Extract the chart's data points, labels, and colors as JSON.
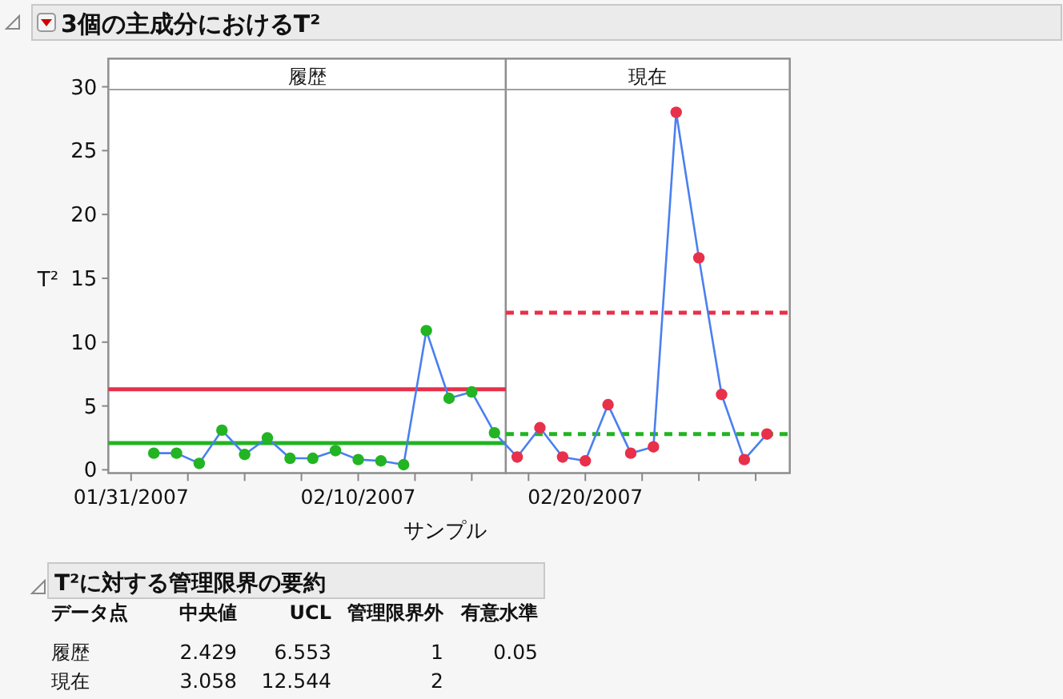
{
  "chart_data": [
    {
      "type": "line",
      "title": "3個の主成分におけるT²",
      "xlabel": "サンプル",
      "ylabel": "T²",
      "marker": "circle",
      "xlim": [
        "2007-01-30",
        "2007-03-01"
      ],
      "xticks": [
        {
          "value": "2007-01-31",
          "label": "01/31/2007"
        },
        {
          "value": "2007-02-02T12:00",
          "label": null
        },
        {
          "value": "2007-02-05",
          "label": null
        },
        {
          "value": "2007-02-07T12:00",
          "label": null
        },
        {
          "value": "2007-02-10",
          "label": "02/10/2007"
        },
        {
          "value": "2007-02-12T12:00",
          "label": null
        },
        {
          "value": "2007-02-15",
          "label": null
        },
        {
          "value": "2007-02-17T12:00",
          "label": null
        },
        {
          "value": "2007-02-20",
          "label": "02/20/2007"
        },
        {
          "value": "2007-02-22T12:00",
          "label": null
        },
        {
          "value": "2007-02-25",
          "label": null
        },
        {
          "value": "2007-02-27T12:00",
          "label": null
        }
      ],
      "ylim": [
        -0.25,
        32.2
      ],
      "yticks": [
        0,
        5,
        10,
        15,
        20,
        25,
        30
      ],
      "bands": [
        {
          "axis": "x",
          "from": "2007-01-30",
          "to": "2007-02-16T12:00",
          "label": "履歴"
        },
        {
          "axis": "x",
          "from": "2007-02-16T12:00",
          "to": "2007-03-01",
          "label": "現在"
        }
      ],
      "series": [
        {
          "type": "line",
          "color": "#4a7ff0",
          "x": [
            "2007-02-01",
            "2007-02-02",
            "2007-02-03",
            "2007-02-04",
            "2007-02-05",
            "2007-02-06",
            "2007-02-07",
            "2007-02-08",
            "2007-02-09",
            "2007-02-10",
            "2007-02-11",
            "2007-02-12",
            "2007-02-13",
            "2007-02-14",
            "2007-02-15",
            "2007-02-16",
            "2007-02-17",
            "2007-02-18",
            "2007-02-19",
            "2007-02-20",
            "2007-02-21",
            "2007-02-22",
            "2007-02-23",
            "2007-02-24",
            "2007-02-25",
            "2007-02-26",
            "2007-02-27",
            "2007-02-28"
          ],
          "values": [
            1.3,
            1.3,
            0.5,
            3.1,
            1.2,
            2.5,
            0.9,
            0.9,
            1.5,
            0.8,
            0.7,
            0.4,
            10.9,
            5.6,
            6.1,
            2.9,
            1.0,
            3.3,
            1.0,
            0.7,
            5.1,
            1.3,
            1.8,
            28.0,
            16.6,
            5.9,
            0.8,
            2.8
          ],
          "colors": [
            "#22b422",
            "#22b422",
            "#22b422",
            "#22b422",
            "#22b422",
            "#22b422",
            "#22b422",
            "#22b422",
            "#22b422",
            "#22b422",
            "#22b422",
            "#22b422",
            "#22b422",
            "#22b422",
            "#22b422",
            "#22b422",
            "#e8304a",
            "#e8304a",
            "#e8304a",
            "#e8304a",
            "#e8304a",
            "#e8304a",
            "#e8304a",
            "#e8304a",
            "#e8304a",
            "#e8304a",
            "#e8304a",
            "#e8304a"
          ]
        },
        {
          "type": "line",
          "color": "#e8304a",
          "marker": "none",
          "line_style": "solid",
          "x": [
            "2007-01-30",
            "2007-02-16T12:00"
          ],
          "values": [
            6.3,
            6.3
          ]
        },
        {
          "type": "line",
          "color": "#22b422",
          "marker": "none",
          "line_style": "solid",
          "x": [
            "2007-01-30",
            "2007-02-16T12:00"
          ],
          "values": [
            2.1,
            2.1
          ]
        },
        {
          "type": "line",
          "color": "#e8304a",
          "marker": "none",
          "line_style": "dashed",
          "x": [
            "2007-02-16T12:00",
            "2007-03-01"
          ],
          "values": [
            12.3,
            12.3
          ]
        },
        {
          "type": "line",
          "color": "#22b422",
          "marker": "none",
          "line_style": "dashed",
          "x": [
            "2007-02-16T12:00",
            "2007-03-01"
          ],
          "values": [
            2.8,
            2.8
          ]
        }
      ]
    },
    {
      "type": "other",
      "title": "T²に対する管理限界の要約",
      "categories": [
        "データ点",
        "中央値",
        "UCL",
        "管理限界外",
        "有意水準"
      ],
      "y_categories": [
        "履歴",
        "現在"
      ],
      "cell_labels": [
        [
          "2.429",
          "6.553",
          "1",
          "0.05"
        ],
        [
          "3.058",
          "12.544",
          "2",
          null
        ]
      ]
    }
  ]
}
